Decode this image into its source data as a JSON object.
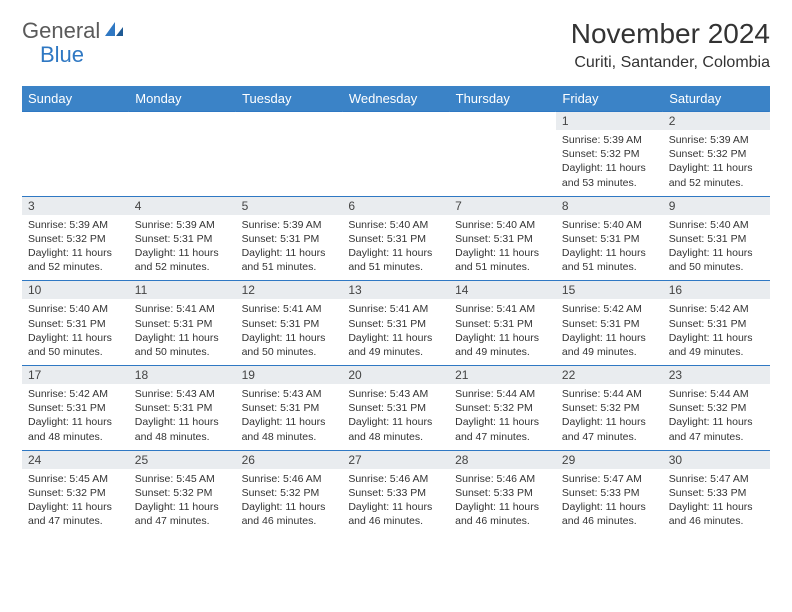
{
  "logo": {
    "text_dark": "General",
    "text_blue": "Blue"
  },
  "title": "November 2024",
  "location": "Curiti, Santander, Colombia",
  "colors": {
    "header_bg": "#3b83c7",
    "header_text": "#ffffff",
    "daynum_bg": "#e9ecef",
    "cell_border": "#2f78c3",
    "logo_dark": "#5a5a5a",
    "logo_blue": "#2f78c3"
  },
  "typography": {
    "month_title_size": 28,
    "location_size": 16,
    "dayheader_size": 13,
    "daynum_size": 12,
    "detail_size": 10.5
  },
  "day_headers": [
    "Sunday",
    "Monday",
    "Tuesday",
    "Wednesday",
    "Thursday",
    "Friday",
    "Saturday"
  ],
  "weeks": [
    {
      "nums": [
        "",
        "",
        "",
        "",
        "",
        "1",
        "2"
      ],
      "details": [
        "",
        "",
        "",
        "",
        "",
        "Sunrise: 5:39 AM\nSunset: 5:32 PM\nDaylight: 11 hours and 53 minutes.",
        "Sunrise: 5:39 AM\nSunset: 5:32 PM\nDaylight: 11 hours and 52 minutes."
      ]
    },
    {
      "nums": [
        "3",
        "4",
        "5",
        "6",
        "7",
        "8",
        "9"
      ],
      "details": [
        "Sunrise: 5:39 AM\nSunset: 5:32 PM\nDaylight: 11 hours and 52 minutes.",
        "Sunrise: 5:39 AM\nSunset: 5:31 PM\nDaylight: 11 hours and 52 minutes.",
        "Sunrise: 5:39 AM\nSunset: 5:31 PM\nDaylight: 11 hours and 51 minutes.",
        "Sunrise: 5:40 AM\nSunset: 5:31 PM\nDaylight: 11 hours and 51 minutes.",
        "Sunrise: 5:40 AM\nSunset: 5:31 PM\nDaylight: 11 hours and 51 minutes.",
        "Sunrise: 5:40 AM\nSunset: 5:31 PM\nDaylight: 11 hours and 51 minutes.",
        "Sunrise: 5:40 AM\nSunset: 5:31 PM\nDaylight: 11 hours and 50 minutes."
      ]
    },
    {
      "nums": [
        "10",
        "11",
        "12",
        "13",
        "14",
        "15",
        "16"
      ],
      "details": [
        "Sunrise: 5:40 AM\nSunset: 5:31 PM\nDaylight: 11 hours and 50 minutes.",
        "Sunrise: 5:41 AM\nSunset: 5:31 PM\nDaylight: 11 hours and 50 minutes.",
        "Sunrise: 5:41 AM\nSunset: 5:31 PM\nDaylight: 11 hours and 50 minutes.",
        "Sunrise: 5:41 AM\nSunset: 5:31 PM\nDaylight: 11 hours and 49 minutes.",
        "Sunrise: 5:41 AM\nSunset: 5:31 PM\nDaylight: 11 hours and 49 minutes.",
        "Sunrise: 5:42 AM\nSunset: 5:31 PM\nDaylight: 11 hours and 49 minutes.",
        "Sunrise: 5:42 AM\nSunset: 5:31 PM\nDaylight: 11 hours and 49 minutes."
      ]
    },
    {
      "nums": [
        "17",
        "18",
        "19",
        "20",
        "21",
        "22",
        "23"
      ],
      "details": [
        "Sunrise: 5:42 AM\nSunset: 5:31 PM\nDaylight: 11 hours and 48 minutes.",
        "Sunrise: 5:43 AM\nSunset: 5:31 PM\nDaylight: 11 hours and 48 minutes.",
        "Sunrise: 5:43 AM\nSunset: 5:31 PM\nDaylight: 11 hours and 48 minutes.",
        "Sunrise: 5:43 AM\nSunset: 5:31 PM\nDaylight: 11 hours and 48 minutes.",
        "Sunrise: 5:44 AM\nSunset: 5:32 PM\nDaylight: 11 hours and 47 minutes.",
        "Sunrise: 5:44 AM\nSunset: 5:32 PM\nDaylight: 11 hours and 47 minutes.",
        "Sunrise: 5:44 AM\nSunset: 5:32 PM\nDaylight: 11 hours and 47 minutes."
      ]
    },
    {
      "nums": [
        "24",
        "25",
        "26",
        "27",
        "28",
        "29",
        "30"
      ],
      "details": [
        "Sunrise: 5:45 AM\nSunset: 5:32 PM\nDaylight: 11 hours and 47 minutes.",
        "Sunrise: 5:45 AM\nSunset: 5:32 PM\nDaylight: 11 hours and 47 minutes.",
        "Sunrise: 5:46 AM\nSunset: 5:32 PM\nDaylight: 11 hours and 46 minutes.",
        "Sunrise: 5:46 AM\nSunset: 5:33 PM\nDaylight: 11 hours and 46 minutes.",
        "Sunrise: 5:46 AM\nSunset: 5:33 PM\nDaylight: 11 hours and 46 minutes.",
        "Sunrise: 5:47 AM\nSunset: 5:33 PM\nDaylight: 11 hours and 46 minutes.",
        "Sunrise: 5:47 AM\nSunset: 5:33 PM\nDaylight: 11 hours and 46 minutes."
      ]
    }
  ]
}
